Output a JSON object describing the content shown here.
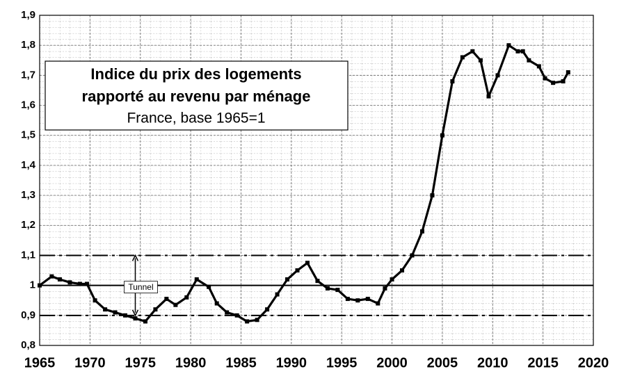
{
  "chart_data": {
    "type": "line",
    "title": [
      "Indice du prix des logements",
      "rapporté au revenu par ménage"
    ],
    "subtitle": "France, base 1965=1",
    "xlim": [
      1965,
      2020
    ],
    "xticks": [
      1965,
      1970,
      1975,
      1980,
      1985,
      1990,
      1995,
      2000,
      2005,
      2010,
      2015,
      2020
    ],
    "ylim": [
      0.8,
      1.9
    ],
    "yticks": [
      {
        "value": 0.8,
        "label": "0,8"
      },
      {
        "value": 0.9,
        "label": "0,9"
      },
      1,
      {
        "value": 1.1,
        "label": "1,1"
      },
      {
        "value": 1.2,
        "label": "1,2"
      },
      {
        "value": 1.3,
        "label": "1,3"
      },
      {
        "value": 1.4,
        "label": "1,4"
      },
      {
        "value": 1.5,
        "label": "1,5"
      },
      {
        "value": 1.6,
        "label": "1,6"
      },
      {
        "value": 1.7,
        "label": "1,7"
      },
      {
        "value": 1.8,
        "label": "1,8"
      },
      {
        "value": 1.9,
        "label": "1,9"
      }
    ],
    "grid": true,
    "series": [
      {
        "color": "#000000",
        "x": [
          1965,
          1966.2,
          1967,
          1968,
          1969,
          1969.7,
          1970.5,
          1971.5,
          1972.5,
          1973.5,
          1974.5,
          1975.5,
          1976.5,
          1977.6,
          1978.5,
          1979.6,
          1980.6,
          1981.8,
          1982.6,
          1983.6,
          1984.6,
          1985.6,
          1986.6,
          1987.6,
          1988.6,
          1989.6,
          1990.6,
          1991.6,
          1992.6,
          1993.6,
          1994.6,
          1995.6,
          1996.6,
          1997.6,
          1998.6,
          1999.3,
          2000,
          2001,
          2002,
          2003,
          2004,
          2005,
          2006,
          2007,
          2008,
          2008.8,
          2009.6,
          2010.5,
          2011.6,
          2012.5,
          2013,
          2013.6,
          2014.6,
          2015.2,
          2016,
          2017,
          2017.5
        ],
        "values": [
          1.0,
          1.03,
          1.02,
          1.01,
          1.005,
          1.005,
          0.95,
          0.92,
          0.91,
          0.9,
          0.89,
          0.88,
          0.92,
          0.955,
          0.935,
          0.96,
          1.02,
          0.995,
          0.94,
          0.91,
          0.9,
          0.88,
          0.885,
          0.92,
          0.97,
          1.02,
          1.05,
          1.075,
          1.015,
          0.99,
          0.985,
          0.955,
          0.95,
          0.955,
          0.94,
          0.99,
          1.02,
          1.05,
          1.1,
          1.18,
          1.3,
          1.5,
          1.68,
          1.76,
          1.78,
          1.75,
          1.63,
          1.7,
          1.8,
          1.78,
          1.78,
          1.75,
          1.73,
          1.69,
          1.675,
          1.68,
          1.71
        ]
      }
    ],
    "reference_lines": [
      {
        "value": 0.9,
        "style": "dashdot"
      },
      {
        "value": 1,
        "style": "solid"
      },
      {
        "value": 1.1,
        "style": "dashdot"
      }
    ],
    "annotations": [
      {
        "text": "Tunnel",
        "x": 1974.5,
        "from": 0.9,
        "to": 1.1
      }
    ]
  }
}
